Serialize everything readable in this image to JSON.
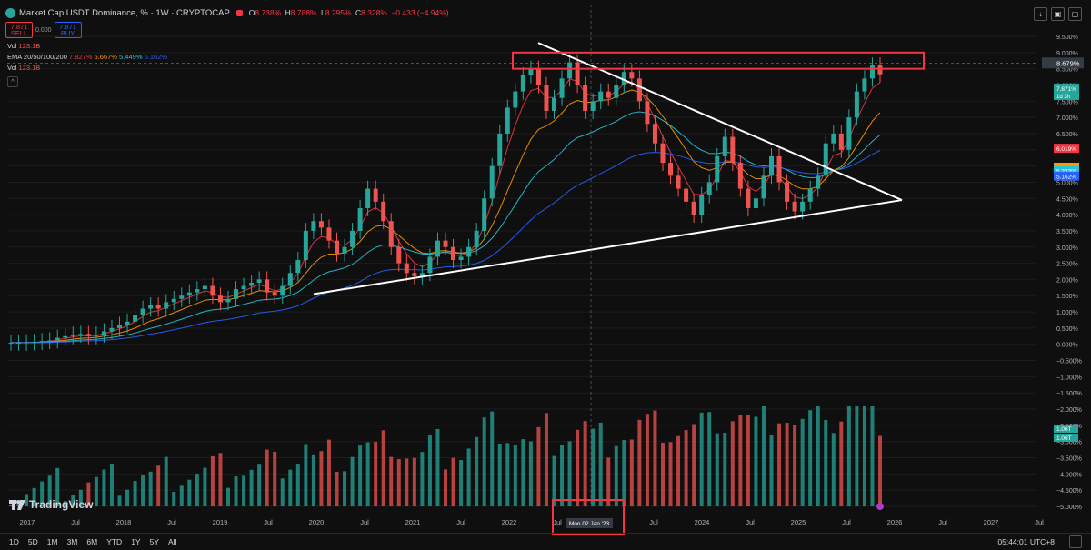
{
  "header": {
    "title": "Market Cap USDT Dominance, %",
    "interval": "1W",
    "exchange": "CRYPTOCAP",
    "separator": "·",
    "ohlc": [
      {
        "k": "O",
        "v": "8.738%"
      },
      {
        "k": "H",
        "v": "8.788%"
      },
      {
        "k": "L",
        "v": "8.295%"
      },
      {
        "k": "C",
        "v": "8.328%"
      }
    ],
    "change": "−0.433 (−4.94%)"
  },
  "trade": {
    "sell_price": "7.871",
    "sell_label": "SELL",
    "spread": "0.000",
    "buy_price": "7.871",
    "buy_label": "BUY"
  },
  "legend": {
    "vol_label": "Vol",
    "vol_value": "123.1B",
    "ema_label": "EMA 20/50/100/200",
    "ema_values": [
      "7.827%",
      "6.667%",
      "5.449%",
      "5.162%"
    ],
    "vol2_value": "123.1B"
  },
  "colors": {
    "up": "#26a69a",
    "down": "#ef5350",
    "ema20": "#f23645",
    "ema50": "#ff9800",
    "ema100": "#26c6da",
    "ema200": "#2962ff",
    "highlight": "#f23645"
  },
  "chart_data": {
    "type": "candlestick",
    "symbol": "Market Cap USDT Dominance, %",
    "y_axis_ticks": [
      "9.500%",
      "9.000%",
      "8.500%",
      "8.000%",
      "7.500%",
      "7.000%",
      "6.500%",
      "6.000%",
      "5.500%",
      "5.000%",
      "4.500%",
      "4.000%",
      "3.500%",
      "3.000%",
      "2.500%",
      "2.000%",
      "1.500%",
      "1.000%",
      "0.500%",
      "0.000%",
      "−0.500%",
      "−1.000%",
      "−1.500%",
      "−2.000%",
      "−2.500%",
      "−3.000%",
      "−3.500%",
      "−4.000%",
      "−4.500%",
      "−5.000%"
    ],
    "ylim": [
      -5.0,
      9.5
    ],
    "x_axis_ticks": [
      "2017",
      "Jul",
      "2018",
      "Jul",
      "2019",
      "Jul",
      "2020",
      "Jul",
      "2021",
      "Jul",
      "2022",
      "Jul",
      "2023",
      "Jul",
      "2024",
      "Jul",
      "2025",
      "Jul",
      "2026",
      "Jul",
      "2027",
      "Jul"
    ],
    "crosshair_date": "Mon 02 Jan '23",
    "crosshair_price": "8.679%",
    "price_labels": [
      {
        "text": "7.871%",
        "sub": "1d 3h",
        "value": 7.871,
        "color": "#26a69a"
      },
      {
        "text": "6.019%",
        "value": 6.019,
        "color": "#f23645"
      },
      {
        "text": "5.434%",
        "value": 5.434,
        "color": "#ff9800"
      },
      {
        "text": "5.333%",
        "value": 5.333,
        "color": "#26c6da"
      },
      {
        "text": "5.162%",
        "value": 5.162,
        "color": "#2962ff"
      }
    ],
    "volume_labels": [
      "1.06T",
      "1.06T"
    ],
    "close_series": [
      0.05,
      0.05,
      0.06,
      0.07,
      0.1,
      0.12,
      0.2,
      0.25,
      0.3,
      0.32,
      0.25,
      0.3,
      0.4,
      0.5,
      0.6,
      0.7,
      0.9,
      1.1,
      1.2,
      1.1,
      1.3,
      1.4,
      1.5,
      1.6,
      1.7,
      1.8,
      1.5,
      1.3,
      1.4,
      1.7,
      1.8,
      1.9,
      2.0,
      1.6,
      1.5,
      1.8,
      2.2,
      2.6,
      3.5,
      3.8,
      3.6,
      3.2,
      2.8,
      3.0,
      3.5,
      4.2,
      4.8,
      4.4,
      3.8,
      3.0,
      2.5,
      2.2,
      2.1,
      2.2,
      2.7,
      3.2,
      3.0,
      2.6,
      2.7,
      3.0,
      3.5,
      4.5,
      5.5,
      6.5,
      7.3,
      7.8,
      8.3,
      8.5,
      8.0,
      7.2,
      7.6,
      8.2,
      8.7,
      8.0,
      7.2,
      7.5,
      7.8,
      7.6,
      8.0,
      8.4,
      8.2,
      7.5,
      6.8,
      6.2,
      5.6,
      5.2,
      4.8,
      4.4,
      4.0,
      4.6,
      5.0,
      5.8,
      6.4,
      5.6,
      4.8,
      4.2,
      4.5,
      5.2,
      5.8,
      5.0,
      4.4,
      4.1,
      4.4,
      4.8,
      5.2,
      6.2,
      6.5,
      6.0,
      7.0,
      7.8,
      8.2,
      8.6,
      8.33
    ]
  },
  "annotations": {
    "resistance_box": "red rectangle around 8.5%–9.0% zone",
    "triangle": "symmetrical triangle trendlines"
  },
  "bottom_bar": {
    "ranges": [
      "1D",
      "5D",
      "1M",
      "3M",
      "6M",
      "YTD",
      "1Y",
      "5Y",
      "All"
    ],
    "clock": "05:44:01 UTC+8"
  },
  "logo": "TradingView"
}
